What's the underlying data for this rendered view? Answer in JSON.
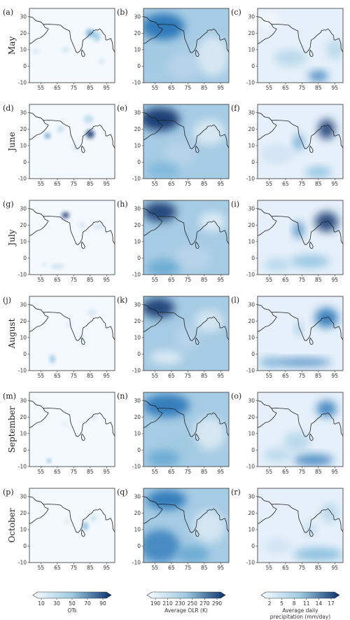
{
  "panel_letters": [
    "(a)",
    "(b)",
    "(c)",
    "(d)",
    "(e)",
    "(f)",
    "(g)",
    "(h)",
    "(i)",
    "(j)",
    "(k)",
    "(l)",
    "(m)",
    "(n)",
    "(o)",
    "(p)",
    "(q)",
    "(r)"
  ],
  "months": [
    "May",
    "June",
    "July",
    "August",
    "September",
    "October"
  ],
  "x_ticks": [
    "55",
    "65",
    "75",
    "85",
    "95"
  ],
  "y_ticks": [
    "30",
    "20",
    "10",
    "0",
    "-10"
  ],
  "colorbars": [
    {
      "label": "OTs",
      "ticks": [
        "10",
        "30",
        "50",
        "70",
        "90"
      ]
    },
    {
      "label": "Average OLR (K)",
      "ticks": [
        "190",
        "210",
        "230",
        "250",
        "270",
        "290"
      ]
    },
    {
      "label": "Average daily",
      "label2": "precipitation (mm/day)",
      "ticks": [
        "2",
        "5",
        "8",
        "11",
        "14",
        "17"
      ]
    }
  ],
  "colors": {
    "light": "#f4f9fe",
    "mid": "#6aaed6",
    "dark": "#08306b"
  }
}
